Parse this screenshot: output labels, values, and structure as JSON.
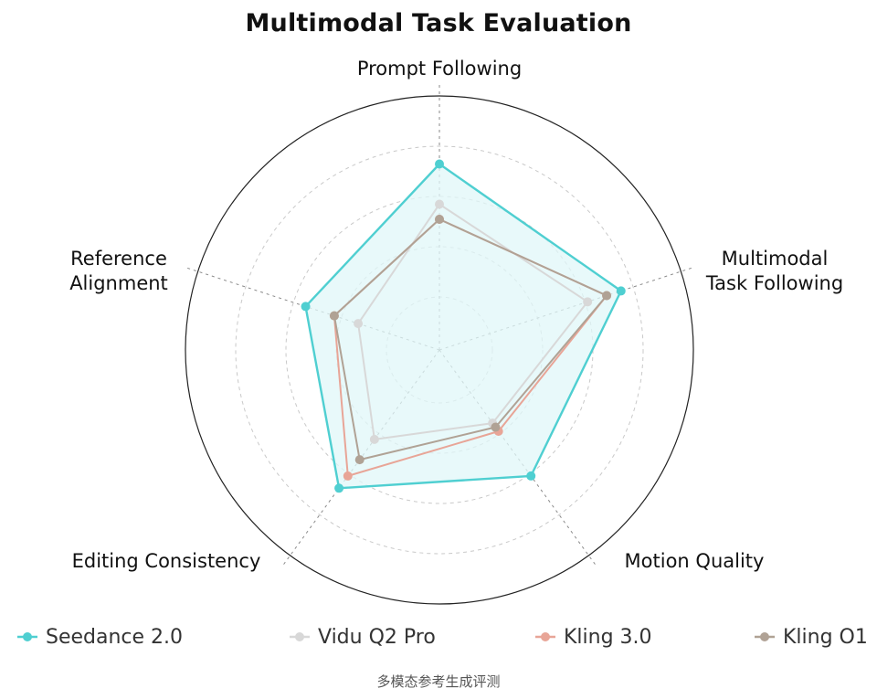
{
  "chart_data": {
    "type": "radar",
    "title": "Multimodal Task Evaluation",
    "axes": [
      "Prompt Following",
      "Multimodal Task Following",
      "Motion Quality",
      "Editing Consistency",
      "Reference Alignment"
    ],
    "range": [
      0,
      5
    ],
    "grid_rings": 5,
    "series": [
      {
        "name": "Seedance 2.0",
        "values": [
          3.7,
          3.8,
          3.1,
          3.4,
          2.8
        ],
        "color": "#4fcfd1",
        "fill": "#e0f7f8"
      },
      {
        "name": "Vidu Q2 Pro",
        "values": [
          2.9,
          3.1,
          1.8,
          2.2,
          1.7
        ],
        "color": "#d8d8d8"
      },
      {
        "name": "Kling 3.0",
        "values": [
          2.6,
          3.5,
          2.0,
          3.1,
          2.2
        ],
        "color": "#e8a597"
      },
      {
        "name": "Kling O1",
        "values": [
          2.6,
          3.5,
          1.9,
          2.7,
          2.2
        ],
        "color": "#b0a295"
      }
    ],
    "legend_position": "bottom"
  },
  "caption": "多模态参考生成评测"
}
